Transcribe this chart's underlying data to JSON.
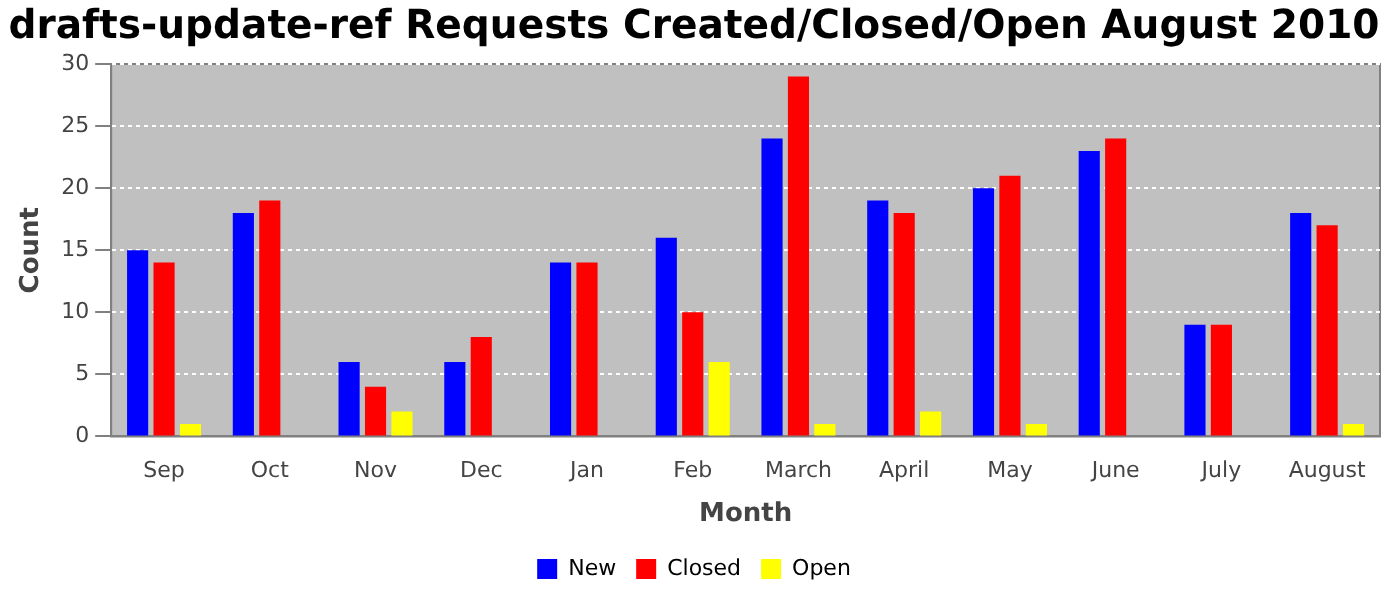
{
  "chart_data": {
    "type": "bar",
    "title": "drafts-update-ref Requests Created/Closed/Open August 2010",
    "xlabel": "Month",
    "ylabel": "Count",
    "categories": [
      "Sep",
      "Oct",
      "Nov",
      "Dec",
      "Jan",
      "Feb",
      "March",
      "April",
      "May",
      "June",
      "July",
      "August"
    ],
    "series": [
      {
        "name": "New",
        "color": "#0000ff",
        "values": [
          15,
          18,
          6,
          6,
          14,
          16,
          24,
          19,
          20,
          23,
          9,
          18
        ]
      },
      {
        "name": "Closed",
        "color": "#ff0000",
        "values": [
          14,
          19,
          4,
          8,
          14,
          10,
          29,
          18,
          21,
          24,
          9,
          17
        ]
      },
      {
        "name": "Open",
        "color": "#ffff00",
        "values": [
          1,
          0,
          2,
          0,
          0,
          6,
          1,
          2,
          1,
          0,
          0,
          1
        ]
      }
    ],
    "ylim": [
      0,
      30
    ],
    "yticks": [
      0,
      5,
      10,
      15,
      20,
      25,
      30
    ],
    "grid": "y",
    "legend": "bottom"
  }
}
